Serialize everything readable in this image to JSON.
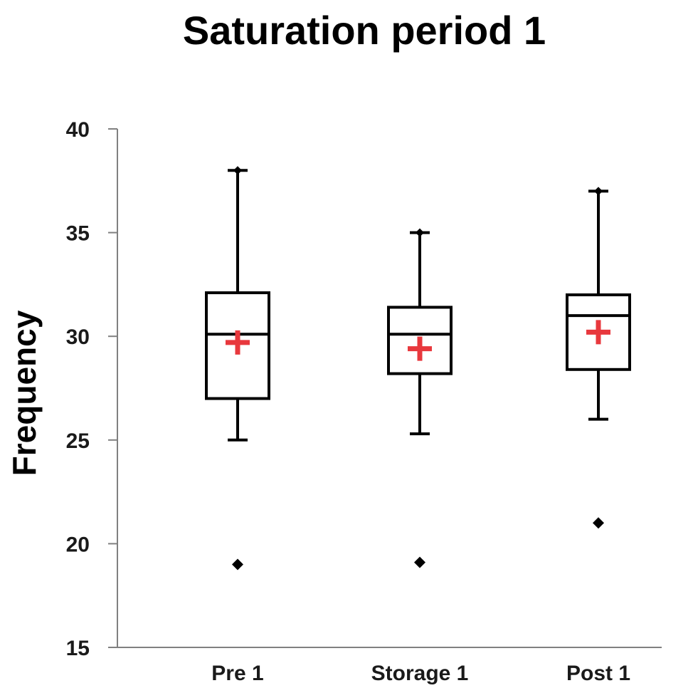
{
  "chart_data": {
    "type": "box",
    "title": "Saturation period 1",
    "xlabel": "",
    "ylabel": "Frequency",
    "ylim": [
      15,
      40
    ],
    "yticks": [
      15,
      20,
      25,
      30,
      35,
      40
    ],
    "grid": false,
    "categories": [
      "Pre 1",
      "Storage 1",
      "Post 1"
    ],
    "boxes": [
      {
        "name": "Pre 1",
        "whisker_low": 25,
        "q1": 27,
        "median": 30.1,
        "q3": 32.1,
        "whisker_high": 38,
        "mean": 29.7,
        "outliers": [
          19
        ]
      },
      {
        "name": "Storage 1",
        "whisker_low": 25.3,
        "q1": 28.2,
        "median": 30.1,
        "q3": 31.4,
        "whisker_high": 35,
        "mean": 29.4,
        "outliers": [
          19.1
        ]
      },
      {
        "name": "Post 1",
        "whisker_low": 26,
        "q1": 28.4,
        "median": 31,
        "q3": 32,
        "whisker_high": 37,
        "mean": 30.2,
        "outliers": [
          21
        ]
      }
    ],
    "colors": {
      "box": "#000000",
      "mean_marker": "#e8383d",
      "axis": "#808080"
    }
  }
}
